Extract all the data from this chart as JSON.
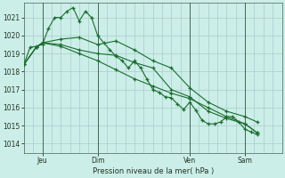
{
  "background_color": "#cceee8",
  "grid_color": "#aacccc",
  "line_color": "#1a6e2e",
  "title": "Pression niveau de la mer( hPa )",
  "ylabel_values": [
    1014,
    1015,
    1016,
    1017,
    1018,
    1019,
    1020,
    1021
  ],
  "ylim": [
    1013.5,
    1021.8
  ],
  "xlim": [
    0,
    84
  ],
  "xtick_positions": [
    6,
    24,
    54,
    72
  ],
  "xtick_labels": [
    "Jeu",
    "Dim",
    "Ven",
    "Sam"
  ],
  "vlines": [
    6,
    24,
    54,
    72
  ],
  "series_spiky": [
    [
      0,
      1018.4
    ],
    [
      2,
      1019.35
    ],
    [
      4,
      1019.4
    ],
    [
      6,
      1019.5
    ],
    [
      8,
      1020.4
    ],
    [
      10,
      1021.0
    ],
    [
      12,
      1021.0
    ],
    [
      14,
      1021.35
    ],
    [
      16,
      1021.55
    ],
    [
      18,
      1020.8
    ],
    [
      20,
      1021.35
    ],
    [
      22,
      1021.0
    ],
    [
      24,
      1020.0
    ],
    [
      26,
      1019.6
    ],
    [
      28,
      1019.2
    ],
    [
      30,
      1018.85
    ],
    [
      32,
      1018.6
    ],
    [
      34,
      1018.2
    ],
    [
      36,
      1018.6
    ],
    [
      38,
      1018.2
    ],
    [
      40,
      1017.6
    ],
    [
      42,
      1017.0
    ],
    [
      44,
      1016.85
    ],
    [
      46,
      1016.6
    ],
    [
      48,
      1016.55
    ],
    [
      50,
      1016.2
    ],
    [
      52,
      1015.9
    ],
    [
      54,
      1016.3
    ],
    [
      56,
      1015.85
    ],
    [
      58,
      1015.3
    ],
    [
      60,
      1015.1
    ],
    [
      62,
      1015.1
    ],
    [
      64,
      1015.2
    ],
    [
      66,
      1015.5
    ],
    [
      68,
      1015.5
    ],
    [
      70,
      1015.2
    ],
    [
      72,
      1014.8
    ],
    [
      74,
      1014.65
    ],
    [
      76,
      1014.5
    ]
  ],
  "series_smooth1": [
    [
      0,
      1018.4
    ],
    [
      4,
      1019.35
    ],
    [
      6,
      1019.6
    ],
    [
      12,
      1019.8
    ],
    [
      18,
      1019.9
    ],
    [
      24,
      1019.5
    ],
    [
      30,
      1019.7
    ],
    [
      36,
      1019.2
    ],
    [
      42,
      1018.6
    ],
    [
      48,
      1018.2
    ],
    [
      54,
      1017.1
    ],
    [
      60,
      1016.3
    ],
    [
      66,
      1015.8
    ],
    [
      72,
      1015.5
    ],
    [
      76,
      1015.2
    ]
  ],
  "series_smooth2": [
    [
      0,
      1018.4
    ],
    [
      4,
      1019.35
    ],
    [
      6,
      1019.6
    ],
    [
      12,
      1019.5
    ],
    [
      18,
      1019.2
    ],
    [
      24,
      1019.0
    ],
    [
      30,
      1018.9
    ],
    [
      36,
      1018.5
    ],
    [
      42,
      1018.2
    ],
    [
      48,
      1017.0
    ],
    [
      54,
      1016.6
    ],
    [
      60,
      1015.8
    ],
    [
      66,
      1015.4
    ],
    [
      72,
      1015.1
    ],
    [
      76,
      1014.6
    ]
  ],
  "series_linear": [
    [
      0,
      1018.4
    ],
    [
      4,
      1019.35
    ],
    [
      6,
      1019.6
    ],
    [
      12,
      1019.4
    ],
    [
      18,
      1019.0
    ],
    [
      24,
      1018.6
    ],
    [
      30,
      1018.1
    ],
    [
      36,
      1017.6
    ],
    [
      42,
      1017.2
    ],
    [
      48,
      1016.8
    ],
    [
      54,
      1016.5
    ],
    [
      60,
      1016.0
    ],
    [
      66,
      1015.5
    ],
    [
      72,
      1015.1
    ],
    [
      76,
      1014.6
    ]
  ]
}
